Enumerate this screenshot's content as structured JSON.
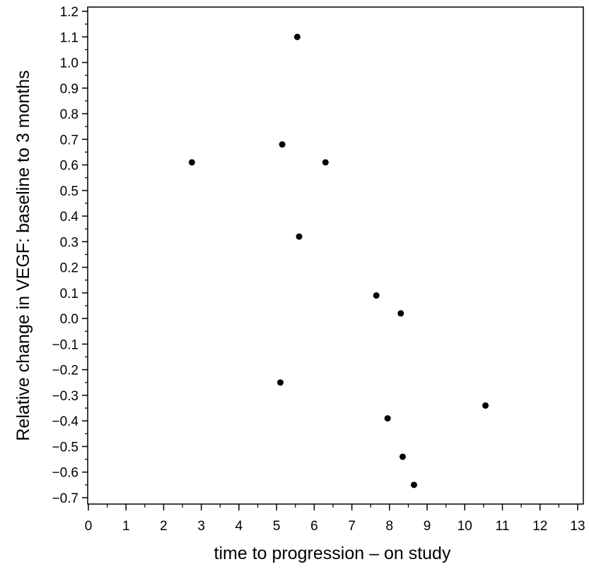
{
  "chart_data": {
    "type": "scatter",
    "title": "",
    "xlabel": "time to progression – on study",
    "ylabel": "Relative change in VEGF: baseline to 3 months",
    "xlim": [
      0,
      13
    ],
    "ylim": [
      -0.7,
      1.2
    ],
    "x_ticks": [
      0,
      1,
      2,
      3,
      4,
      5,
      6,
      7,
      8,
      9,
      10,
      11,
      12,
      13
    ],
    "x_tick_labels": [
      "0",
      "1",
      "2",
      "3",
      "4",
      "5",
      "6",
      "7",
      "8",
      "9",
      "10",
      "11",
      "12",
      "13"
    ],
    "y_ticks": [
      1.2,
      1.1,
      1.0,
      0.9,
      0.8,
      0.7,
      0.6,
      0.5,
      0.4,
      0.3,
      0.2,
      0.1,
      0.0,
      -0.1,
      -0.2,
      -0.3,
      -0.4,
      -0.5,
      -0.6,
      -0.7
    ],
    "y_tick_labels": [
      "1.2",
      "1.1",
      "1.0",
      "0.9",
      "0.8",
      "0.7",
      "0.6",
      "0.5",
      "0.4",
      "0.3",
      "0.2",
      "0.1",
      "0.0",
      "−0.1",
      "−0.2",
      "−0.3",
      "−0.4",
      "−0.5",
      "−0.6",
      "−0.7"
    ],
    "grid": false,
    "legend": "none",
    "marker_color": "#000000",
    "points": [
      {
        "x": 2.75,
        "y": 0.61
      },
      {
        "x": 5.1,
        "y": -0.25
      },
      {
        "x": 5.15,
        "y": 0.68
      },
      {
        "x": 5.55,
        "y": 1.1
      },
      {
        "x": 5.6,
        "y": 0.32
      },
      {
        "x": 6.3,
        "y": 0.61
      },
      {
        "x": 7.65,
        "y": 0.09
      },
      {
        "x": 7.95,
        "y": -0.39
      },
      {
        "x": 8.3,
        "y": 0.02
      },
      {
        "x": 8.35,
        "y": -0.54
      },
      {
        "x": 8.65,
        "y": -0.65
      },
      {
        "x": 10.55,
        "y": -0.34
      }
    ]
  }
}
